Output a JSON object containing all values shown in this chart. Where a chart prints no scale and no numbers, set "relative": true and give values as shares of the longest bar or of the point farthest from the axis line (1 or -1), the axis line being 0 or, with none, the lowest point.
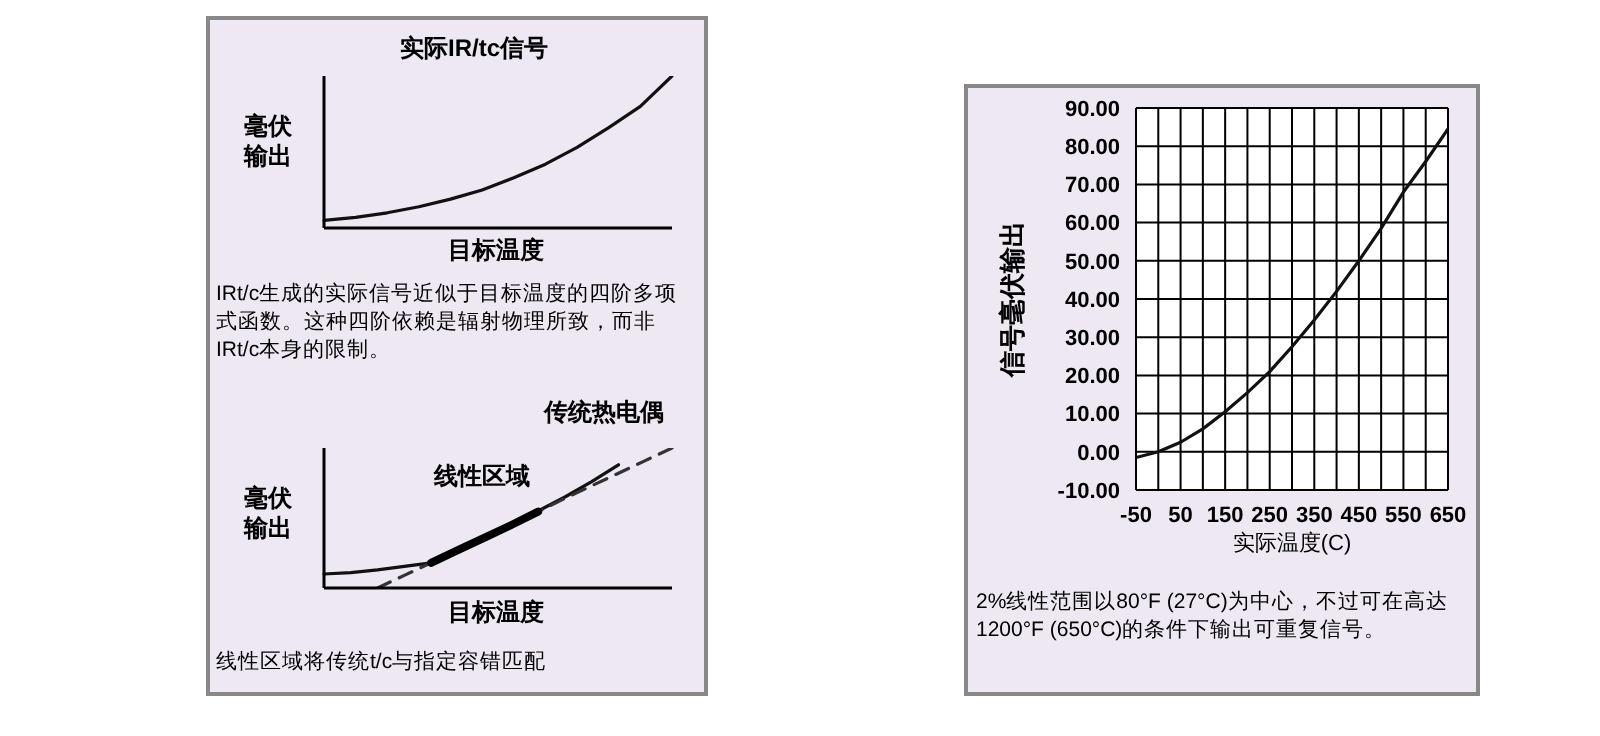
{
  "chart_data": [
    {
      "type": "line",
      "relative": true,
      "xlabel": "目标温度",
      "ylabel": "毫伏输出",
      "categories": [
        null,
        null,
        null,
        null,
        null,
        null,
        null,
        null,
        null,
        null,
        null,
        null
      ],
      "series": [
        {
          "color": "#111111",
          "values": [
            0.05,
            0.07,
            0.1,
            0.14,
            0.19,
            0.25,
            0.33,
            0.42,
            0.53,
            0.66,
            0.8,
            1
          ]
        }
      ],
      "annotations": [
        "实际IR/tc信号",
        "IRt/c生成的实际信号近似于目标温度的四阶多项式函数。这种四阶依赖是辐射物理所致，而非IRt/c本身的限制。"
      ]
    },
    {
      "type": "line",
      "relative": true,
      "xlabel": "目标温度",
      "ylabel": "毫伏输出",
      "categories": [
        null,
        null,
        null,
        null,
        null,
        null,
        null,
        null,
        null,
        null,
        null,
        null,
        null,
        null
      ],
      "series": [
        {
          "color": "#111111",
          "values": [
            0.1,
            0.11,
            0.13,
            0.155,
            0.18,
            0.27,
            0.36,
            0.45,
            0.55,
            0.65,
            0.76,
            0.88,
            null,
            null
          ]
        },
        {
          "name": "传统热电偶",
          "color": "#333333",
          "line_style": "dashed",
          "values": [
            null,
            null,
            0,
            0.09,
            0.18,
            0.27,
            0.36,
            0.45,
            0.545,
            0.64,
            0.73,
            0.82,
            0.91,
            1
          ]
        },
        {
          "name": "线性区域",
          "color": "#000000",
          "line_style": "solid",
          "values": [
            null,
            null,
            null,
            null,
            0.18,
            0.27,
            0.36,
            0.45,
            0.545,
            null,
            null,
            null,
            null,
            null
          ]
        }
      ],
      "annotations": [
        "线性区域将传统t/c与指定容错匹配"
      ]
    },
    {
      "type": "line",
      "xlabel": "实际温度(C)",
      "ylabel": "信号毫伏输出",
      "grid": true,
      "x": [
        -50,
        0,
        50,
        100,
        150,
        200,
        250,
        300,
        350,
        400,
        450,
        500,
        550,
        600,
        650
      ],
      "series": [
        {
          "color": "#111111",
          "values": [
            -1.5,
            0,
            2.5,
            6,
            10.5,
            15.5,
            21,
            27.5,
            34.5,
            42,
            50,
            58.5,
            68,
            76,
            84.5
          ]
        }
      ],
      "xlim": [
        -50,
        650
      ],
      "xticks": [
        -50,
        {
          "value": 0,
          "label": null
        },
        50,
        {
          "value": 100,
          "label": null
        },
        150,
        {
          "value": 200,
          "label": null
        },
        250,
        {
          "value": 300,
          "label": null
        },
        350,
        {
          "value": 400,
          "label": null
        },
        450,
        {
          "value": 500,
          "label": null
        },
        550,
        {
          "value": 600,
          "label": null
        },
        650
      ],
      "ylim": [
        -10,
        90
      ],
      "yticks": [
        {
          "value": -10,
          "label": "-10.00"
        },
        {
          "value": 0,
          "label": "0.00"
        },
        {
          "value": 10,
          "label": "10.00"
        },
        {
          "value": 20,
          "label": "20.00"
        },
        {
          "value": 30,
          "label": "30.00"
        },
        {
          "value": 40,
          "label": "40.00"
        },
        {
          "value": 50,
          "label": "50.00"
        },
        {
          "value": 60,
          "label": "60.00"
        },
        {
          "value": 70,
          "label": "70.00"
        },
        {
          "value": 80,
          "label": "80.00"
        },
        {
          "value": 90,
          "label": "90.00"
        }
      ],
      "annotations": [
        "2%线性范围以80°F (27°C)为中心，不过可在高达1200°F (650°C)的条件下输出可重复信号。"
      ]
    }
  ]
}
